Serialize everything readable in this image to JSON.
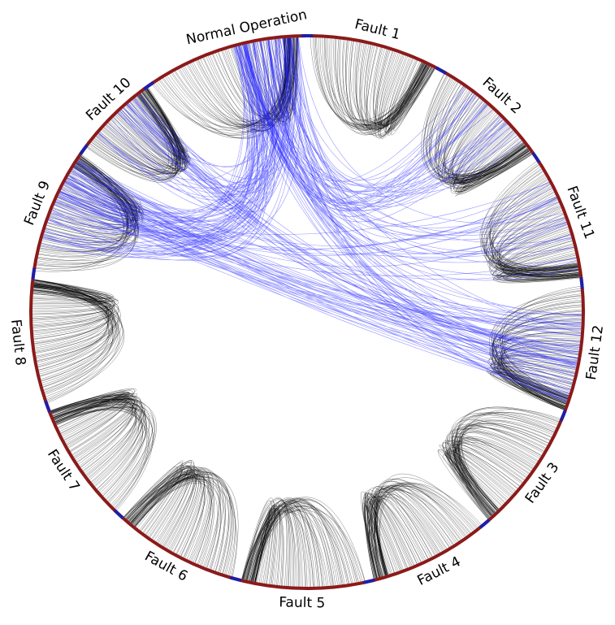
{
  "diagram": {
    "type": "chord",
    "segments": [
      {
        "key": "normal",
        "label": "Normal Operation"
      },
      {
        "key": "f1",
        "label": "Fault 1"
      },
      {
        "key": "f2",
        "label": "Fault 2"
      },
      {
        "key": "f11",
        "label": "Fault 11"
      },
      {
        "key": "f12",
        "label": "Fault 12"
      },
      {
        "key": "f3",
        "label": "Fault 3"
      },
      {
        "key": "f4",
        "label": "Fault 4"
      },
      {
        "key": "f5",
        "label": "Fault 5"
      },
      {
        "key": "f6",
        "label": "Fault 6"
      },
      {
        "key": "f7",
        "label": "Fault 7"
      },
      {
        "key": "f8",
        "label": "Fault 8"
      },
      {
        "key": "f9",
        "label": "Fault 9"
      },
      {
        "key": "f10",
        "label": "Fault 10"
      }
    ],
    "colors": {
      "ring": "#8b1a1a",
      "ring_separator": "#1f1fa8",
      "intra_chord": "#000000",
      "cross_chord": "#1a1aff"
    }
  }
}
